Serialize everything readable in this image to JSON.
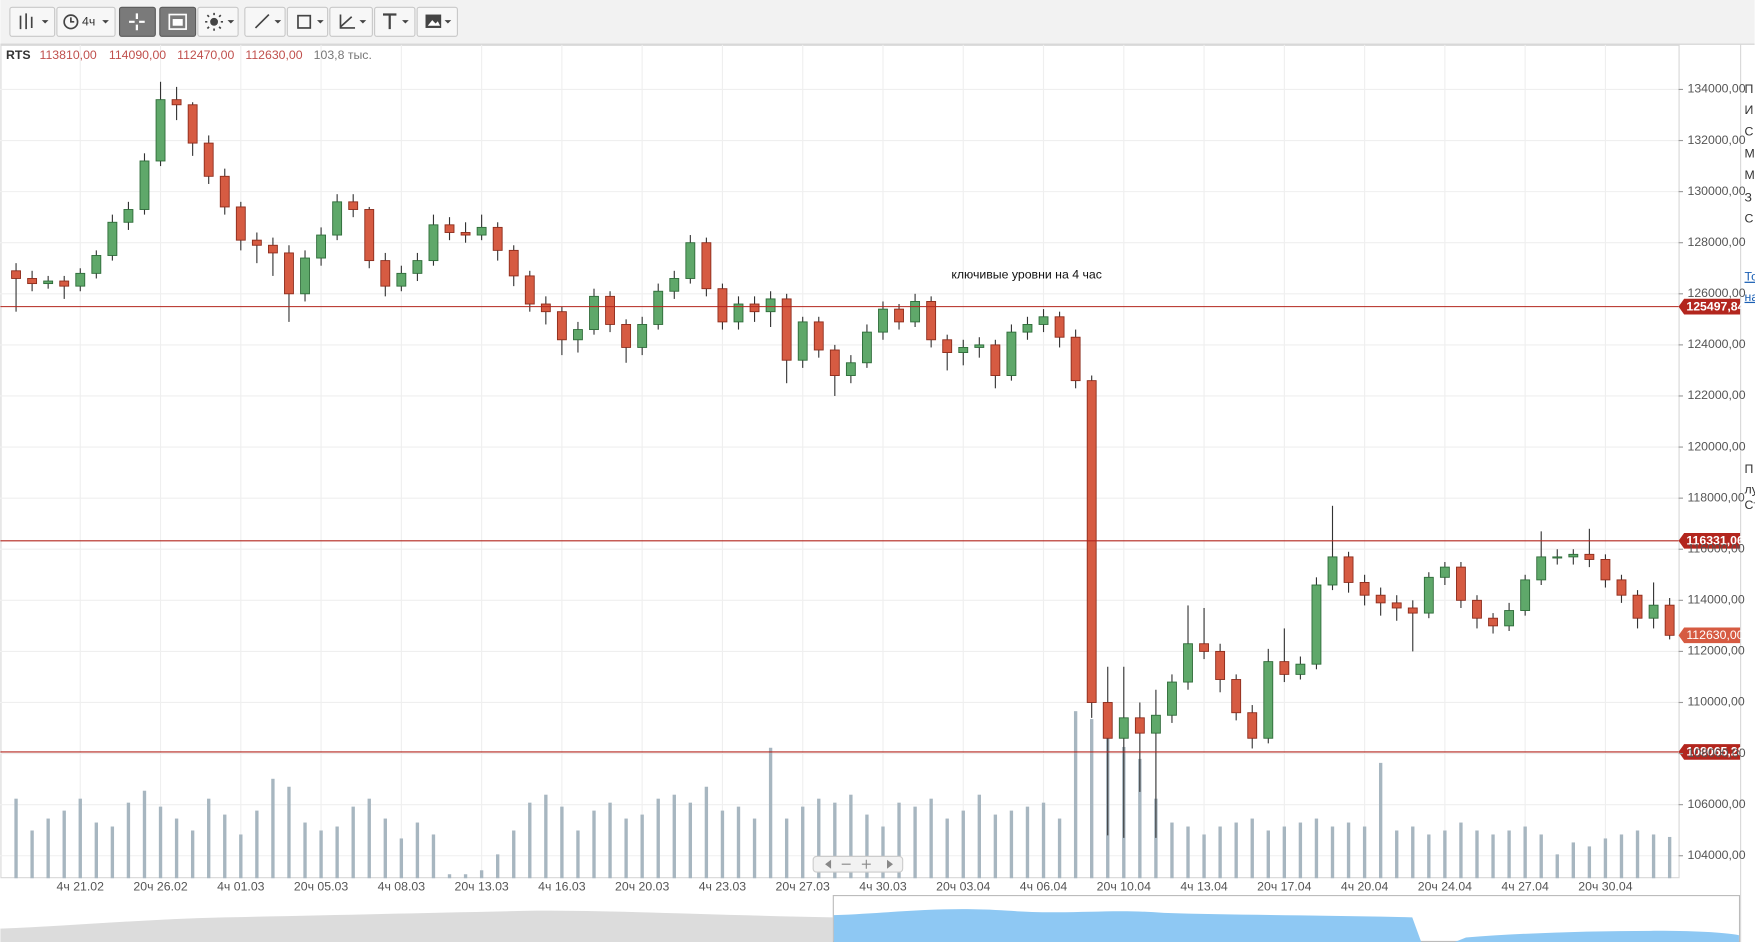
{
  "toolbar": {
    "timeframe": "4ч"
  },
  "header": {
    "symbol": "RTS",
    "open": {
      "value": 113810,
      "label": "113810,00"
    },
    "high": {
      "value": 114090,
      "label": "114090,00"
    },
    "low": {
      "value": 112470,
      "label": "112470,00"
    },
    "close": {
      "value": 112630,
      "label": "112630,00"
    },
    "volume": {
      "value": 103.8,
      "label": "103,8 тыс."
    }
  },
  "sidebar": [
    "П",
    "И",
    "С",
    "М",
    "М",
    "З",
    "С",
    "То",
    "на",
    "П",
    "лу",
    "Ст"
  ],
  "chart_data": {
    "type": "candlestick",
    "annotation": "ключивые уровни на 4 час",
    "categories": [
      null,
      null,
      null,
      null,
      "4ч 21.02",
      null,
      null,
      null,
      null,
      "20ч 26.02",
      null,
      null,
      null,
      null,
      "4ч 01.03",
      null,
      null,
      null,
      null,
      "20ч 05.03",
      null,
      null,
      null,
      null,
      "4ч 08.03",
      null,
      null,
      null,
      null,
      "20ч 13.03",
      null,
      null,
      null,
      null,
      "4ч 16.03",
      null,
      null,
      null,
      null,
      "20ч 20.03",
      null,
      null,
      null,
      null,
      "4ч 23.03",
      null,
      null,
      null,
      null,
      "20ч 27.03",
      null,
      null,
      null,
      null,
      "4ч 30.03",
      null,
      null,
      null,
      null,
      "20ч 03.04",
      null,
      null,
      null,
      null,
      "4ч 06.04",
      null,
      null,
      null,
      null,
      "20ч 10.04",
      null,
      null,
      null,
      null,
      "4ч 13.04",
      null,
      null,
      null,
      null,
      "20ч 17.04",
      null,
      null,
      null,
      null,
      "4ч 20.04",
      null,
      null,
      null,
      null,
      "20ч 24.04",
      null,
      null,
      null,
      null,
      "4ч 27.04",
      null,
      null,
      null,
      null,
      "20ч 30.04",
      null,
      null,
      null,
      null
    ],
    "ohlc": [
      [
        126900,
        127200,
        125300,
        126600
      ],
      [
        126600,
        126900,
        126100,
        126400
      ],
      [
        126400,
        126700,
        126200,
        126500
      ],
      [
        126500,
        126700,
        125800,
        126300
      ],
      [
        126300,
        127000,
        126100,
        126800
      ],
      [
        126800,
        127700,
        126600,
        127500
      ],
      [
        127500,
        129100,
        127300,
        128800
      ],
      [
        128800,
        129600,
        128500,
        129300
      ],
      [
        129300,
        131500,
        129100,
        131200
      ],
      [
        131200,
        134300,
        131000,
        133600
      ],
      [
        133600,
        134100,
        132800,
        133400
      ],
      [
        133400,
        133500,
        131400,
        131900
      ],
      [
        131900,
        132200,
        130300,
        130600
      ],
      [
        130600,
        130900,
        129100,
        129400
      ],
      [
        129400,
        129600,
        127700,
        128100
      ],
      [
        128100,
        128400,
        127200,
        127900
      ],
      [
        127900,
        128200,
        126700,
        127600
      ],
      [
        127600,
        127900,
        124900,
        126000
      ],
      [
        126000,
        127700,
        125700,
        127400
      ],
      [
        127400,
        128600,
        127100,
        128300
      ],
      [
        128300,
        129900,
        128100,
        129600
      ],
      [
        129600,
        129900,
        129000,
        129300
      ],
      [
        129300,
        129400,
        127000,
        127300
      ],
      [
        127300,
        127600,
        125900,
        126300
      ],
      [
        126300,
        127100,
        126100,
        126800
      ],
      [
        126800,
        127600,
        126500,
        127300
      ],
      [
        127300,
        129100,
        127100,
        128700
      ],
      [
        128700,
        129000,
        128100,
        128400
      ],
      [
        128400,
        128800,
        128000,
        128300
      ],
      [
        128300,
        129100,
        128100,
        128600
      ],
      [
        128600,
        128800,
        127300,
        127700
      ],
      [
        127700,
        127900,
        126300,
        126700
      ],
      [
        126700,
        126900,
        125300,
        125600
      ],
      [
        125600,
        125900,
        124800,
        125300
      ],
      [
        125300,
        125500,
        123600,
        124200
      ],
      [
        124200,
        124900,
        123700,
        124600
      ],
      [
        124600,
        126200,
        124400,
        125900
      ],
      [
        125900,
        126100,
        124500,
        124800
      ],
      [
        124800,
        125000,
        123300,
        123900
      ],
      [
        123900,
        125100,
        123600,
        124800
      ],
      [
        124800,
        126400,
        124600,
        126100
      ],
      [
        126100,
        126900,
        125800,
        126600
      ],
      [
        126600,
        128300,
        126400,
        128000
      ],
      [
        128000,
        128200,
        125900,
        126200
      ],
      [
        126200,
        126400,
        124600,
        124900
      ],
      [
        124900,
        125900,
        124600,
        125600
      ],
      [
        125600,
        125900,
        124900,
        125300
      ],
      [
        125300,
        126100,
        124700,
        125800
      ],
      [
        125800,
        126000,
        122500,
        123400
      ],
      [
        123400,
        125100,
        123100,
        124900
      ],
      [
        124900,
        125100,
        123500,
        123800
      ],
      [
        123800,
        124000,
        122000,
        122800
      ],
      [
        122800,
        123600,
        122500,
        123300
      ],
      [
        123300,
        124800,
        123100,
        124500
      ],
      [
        124500,
        125700,
        124200,
        125400
      ],
      [
        125400,
        125600,
        124600,
        124900
      ],
      [
        124900,
        126000,
        124700,
        125700
      ],
      [
        125700,
        125900,
        123900,
        124200
      ],
      [
        124200,
        124400,
        123000,
        123700
      ],
      [
        123700,
        124200,
        123200,
        123900
      ],
      [
        123900,
        124300,
        123500,
        124000
      ],
      [
        124000,
        124200,
        122300,
        122800
      ],
      [
        122800,
        124800,
        122600,
        124500
      ],
      [
        124500,
        125100,
        124200,
        124800
      ],
      [
        124800,
        125400,
        124500,
        125100
      ],
      [
        125100,
        125300,
        123900,
        124300
      ],
      [
        124300,
        124600,
        122300,
        122600
      ],
      [
        122600,
        122800,
        109400,
        110000
      ],
      [
        110000,
        111400,
        104800,
        108600
      ],
      [
        108600,
        111400,
        104700,
        109400
      ],
      [
        109400,
        110000,
        106500,
        108800
      ],
      [
        108800,
        110500,
        104700,
        109500
      ],
      [
        109500,
        111100,
        109200,
        110800
      ],
      [
        110800,
        113800,
        110500,
        112300
      ],
      [
        112300,
        113700,
        111700,
        112000
      ],
      [
        112000,
        112300,
        110400,
        110900
      ],
      [
        110900,
        111100,
        109300,
        109600
      ],
      [
        109600,
        109900,
        108200,
        108600
      ],
      [
        108600,
        112100,
        108400,
        111600
      ],
      [
        111600,
        112900,
        110800,
        111100
      ],
      [
        111100,
        111800,
        110900,
        111500
      ],
      [
        111500,
        114900,
        111300,
        114600
      ],
      [
        114600,
        117700,
        114400,
        115700
      ],
      [
        115700,
        115900,
        114300,
        114700
      ],
      [
        114700,
        115000,
        113800,
        114200
      ],
      [
        114200,
        114500,
        113400,
        113900
      ],
      [
        113900,
        114200,
        113200,
        113700
      ],
      [
        113700,
        114000,
        112000,
        113500
      ],
      [
        113500,
        115100,
        113300,
        114900
      ],
      [
        114900,
        115500,
        114600,
        115300
      ],
      [
        115300,
        115500,
        113700,
        114000
      ],
      [
        114000,
        114200,
        112900,
        113300
      ],
      [
        113300,
        113500,
        112700,
        113000
      ],
      [
        113000,
        113900,
        112800,
        113600
      ],
      [
        113600,
        115000,
        113400,
        114800
      ],
      [
        114800,
        116700,
        114600,
        115700
      ],
      [
        115700,
        116000,
        115400,
        115700
      ],
      [
        115700,
        116000,
        115400,
        115800
      ],
      [
        115800,
        116800,
        115300,
        115600
      ],
      [
        115600,
        115800,
        114500,
        114800
      ],
      [
        114800,
        115000,
        113900,
        114200
      ],
      [
        114200,
        114400,
        112900,
        113300
      ],
      [
        113300,
        114700,
        112900,
        113810
      ],
      [
        113810,
        114090,
        112470,
        112630
      ]
    ],
    "volume": [
      200,
      120,
      150,
      170,
      200,
      140,
      130,
      190,
      220,
      180,
      150,
      120,
      200,
      160,
      110,
      170,
      250,
      230,
      140,
      120,
      130,
      180,
      200,
      150,
      100,
      140,
      110,
      10,
      10,
      20,
      60,
      120,
      190,
      210,
      180,
      120,
      170,
      190,
      150,
      160,
      200,
      210,
      190,
      230,
      170,
      180,
      150,
      328,
      150,
      180,
      200,
      190,
      210,
      160,
      130,
      190,
      180,
      200,
      150,
      170,
      210,
      160,
      170,
      180,
      190,
      150,
      420,
      400,
      380,
      330,
      300,
      200,
      140,
      130,
      110,
      130,
      140,
      150,
      120,
      130,
      140,
      150,
      130,
      140,
      130,
      290,
      120,
      130,
      110,
      120,
      140,
      120,
      110,
      120,
      130,
      110,
      60,
      90,
      80,
      100,
      110,
      120,
      110,
      103.8
    ],
    "up_color": "#5fa86a",
    "down_color": "#d65b42",
    "volume_color": "#a7b6c0",
    "level_color": "#b3261e",
    "ylim": [
      103120,
      135750
    ],
    "yticks": [
      {
        "value": 104000,
        "label": "104000,00"
      },
      {
        "value": 106000,
        "label": "106000,00"
      },
      {
        "value": 108000,
        "label": "108000,00"
      },
      {
        "value": 110000,
        "label": "110000,00"
      },
      {
        "value": 112000,
        "label": "112000,00"
      },
      {
        "value": 114000,
        "label": "114000,00"
      },
      {
        "value": 116000,
        "label": "116000,00"
      },
      {
        "value": 118000,
        "label": "118000,00"
      },
      {
        "value": 120000,
        "label": "120000,00"
      },
      {
        "value": 122000,
        "label": "122000,00"
      },
      {
        "value": 124000,
        "label": "124000,00"
      },
      {
        "value": 126000,
        "label": "126000,00"
      },
      {
        "value": 128000,
        "label": "128000,00"
      },
      {
        "value": 130000,
        "label": "130000,00"
      },
      {
        "value": 132000,
        "label": "132000,00"
      },
      {
        "value": 134000,
        "label": "134000,00"
      }
    ],
    "y2lim": [
      0,
      450
    ],
    "levels": [
      {
        "value": 125497.84,
        "label": "125497,84"
      },
      {
        "value": 116331.06,
        "label": "116331,06"
      },
      {
        "value": 108065.28,
        "label": "108065,28"
      }
    ],
    "last_price": {
      "value": 112630,
      "label": "112630,00"
    },
    "grid": true
  }
}
